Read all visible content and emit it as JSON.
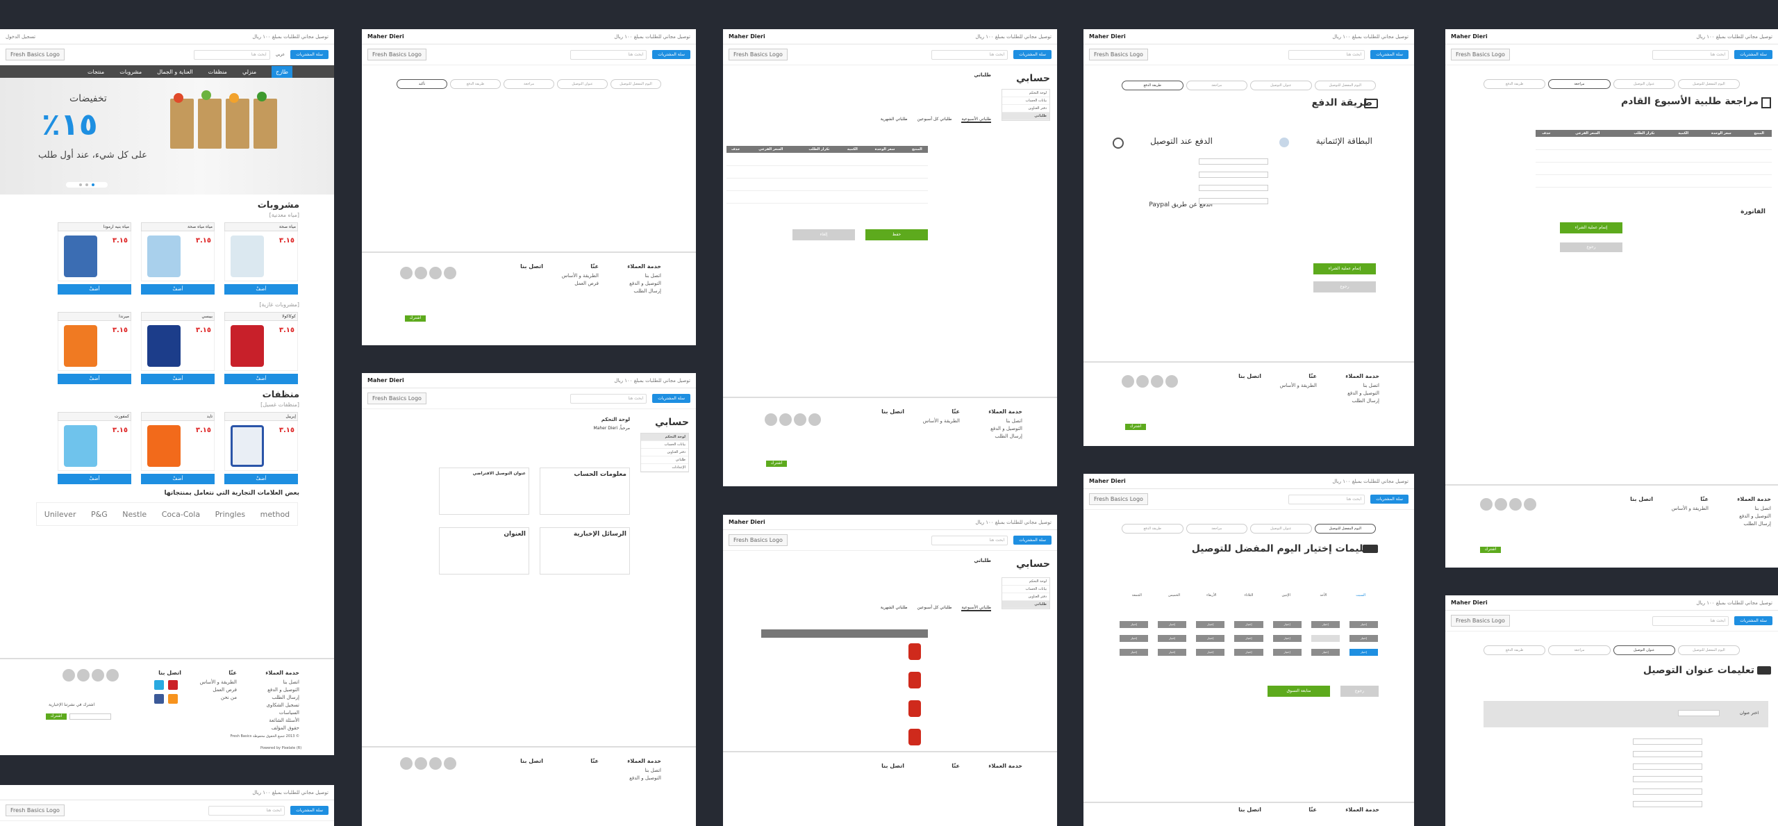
{
  "common": {
    "brand": "Fresh Basics Logo",
    "search_placeholder": "ابحث هنا",
    "cart_btn": "سلة المشتريات",
    "lang": "عربي",
    "topbar_phone": "توصيل مجاني للطلبات بمبلغ ١٠٠ ريال",
    "topbar_login": "تسجيل الدخول",
    "topbar_user": "Maher Dieri",
    "footer": {
      "col1_title": "خدمة العملاء",
      "col1_items": [
        "اتصل بنا",
        "التوصيل و الدفع",
        "إرسال الطلب",
        "تسجيل الشكاوى",
        "السياسات",
        "الأسئلة الشائعة",
        "حقوق المؤلف"
      ],
      "col2_title": "عنّا",
      "col2_items": [
        "الطريقة و الأساس",
        "فرص العمل",
        "من نحن"
      ],
      "col3_title": "اتصل بنا",
      "newsletter": "اشترك في نشرتنا الإخبارية",
      "subscribe": "اشترك",
      "copyright": "© 2013 جميع الحقوق محفوظة Fresh Basics",
      "powered": "Powered by Pixelate (R)"
    }
  },
  "home": {
    "nav": [
      "منتجات",
      "مشروبات",
      "منزلي",
      "طازج",
      "العناية و الجمال",
      "منظفات"
    ],
    "hero": {
      "t1": "تخفيضات",
      "t2": "١٥٪",
      "t3": "على كل شيء، عند أول طلب"
    },
    "sections": [
      {
        "title": "مشروبات",
        "sub": "[مياه معدنية]"
      },
      {
        "title": "",
        "sub": "[مشروبات غازية]"
      },
      {
        "title": "منظفات",
        "sub": "[منظفات غسيل]"
      }
    ],
    "buy_label": "أضفْ",
    "price": "٣.١٥",
    "products_row1": [
      "مياه صحة",
      "مياه مياه صحة",
      "مياه بنيه ارمودا"
    ],
    "products_row2": [
      "كوكاكولا",
      "بيبسي",
      "ميرندا"
    ],
    "products_row3": [
      "إيرييل",
      "تايد",
      "كمفورت"
    ],
    "brands_title": "بعض العلامات التجارية التي نتعامل بمنتجاتها",
    "brands": [
      "Unilever",
      "P&G",
      "Nestle",
      "Coca-Cola",
      "Pringles",
      "method"
    ]
  },
  "account": {
    "title": "حسابي",
    "orders_title": "طلباتي",
    "tabs": [
      "طلباتي الأسبوعية",
      "طلباتي كل أسبوعين",
      "طلباتي الشهرية"
    ],
    "menu": [
      "لوحة التحكم",
      "بيانات الحساب",
      "دفتر العناوين",
      "طلباتي",
      "الأسلمة",
      "الإعدادات"
    ],
    "save": "حفظ",
    "cancel": "إلغاء",
    "table_headers": [
      "المنتج",
      "سعر الوحدة",
      "الكمية",
      "تكرار الطلب",
      "السعر الفرعي",
      "حذف"
    ],
    "dashboard_title": "لوحة التحكم",
    "hello": "مرحباً, Maher Dieri",
    "account_info": "معلومات الحساب",
    "default_address": "عنوان التوصيل الافتراضي",
    "address": "العنوان",
    "newsletter": "الرسائل الإخبارية"
  },
  "checkout": {
    "steps": [
      "اليوم المفضل للتوصيل",
      "عنوان التوصيل",
      "مراجعة",
      "طريقة الدفع",
      "تأكيد"
    ],
    "payment_title": "طريقة الدفع",
    "credit_card": "البطاقة الإئتمانية",
    "cod": "الدفع عند التوصيل",
    "paypal": "الدفع عن طريق Paypal",
    "place_order": "إتمام عملية الشراء",
    "back": "رجوع",
    "delivery_day_title": "تعليمات إختيار اليوم المفضل للتوصيل",
    "days": [
      "السبت",
      "الأحد",
      "الإثنين",
      "الثلاثاء",
      "الأربعاء",
      "الخميس",
      "الجمعة"
    ],
    "continue_shopping": "متابعة التسوق",
    "choose": "إختيار",
    "review_title": "مراجعة طلبية الأسبوع القادم",
    "invoice": "الفاتورة",
    "address_title": "تعليمات عنوان التوصيل",
    "choose_address": "اختر عنوان"
  },
  "colors": {
    "primary": "#1e8fe1",
    "green": "#5daa1d",
    "dark": "#262a33",
    "nav": "#4a4a4a",
    "price": "#dd2222"
  }
}
